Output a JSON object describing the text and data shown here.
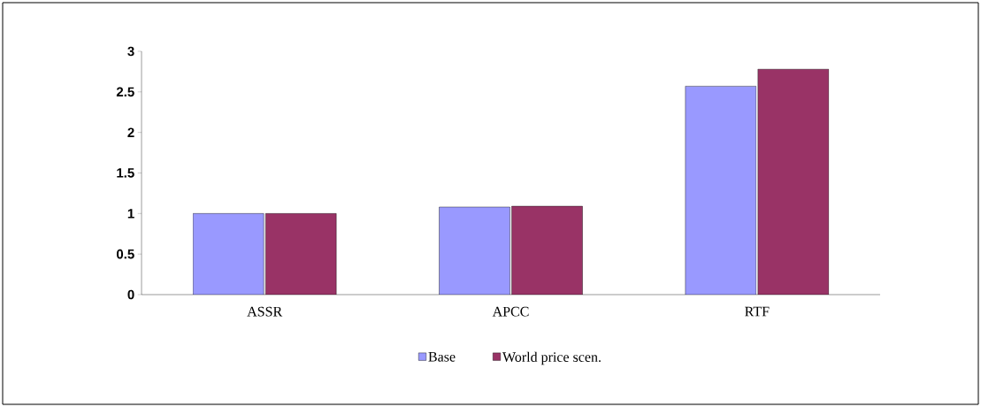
{
  "chart_data": {
    "type": "bar",
    "categories": [
      "ASSR",
      "APCC",
      "RTF"
    ],
    "series": [
      {
        "name": "Base",
        "color": "#9999ff",
        "values": [
          1.0,
          1.08,
          2.57
        ]
      },
      {
        "name": "World price scen.",
        "color": "#993366",
        "values": [
          1.0,
          1.09,
          2.78
        ]
      }
    ],
    "ylim": [
      0,
      3
    ],
    "yticks": [
      0,
      0.5,
      1,
      1.5,
      2,
      2.5,
      3
    ],
    "grid": false,
    "legend": "bottom"
  }
}
